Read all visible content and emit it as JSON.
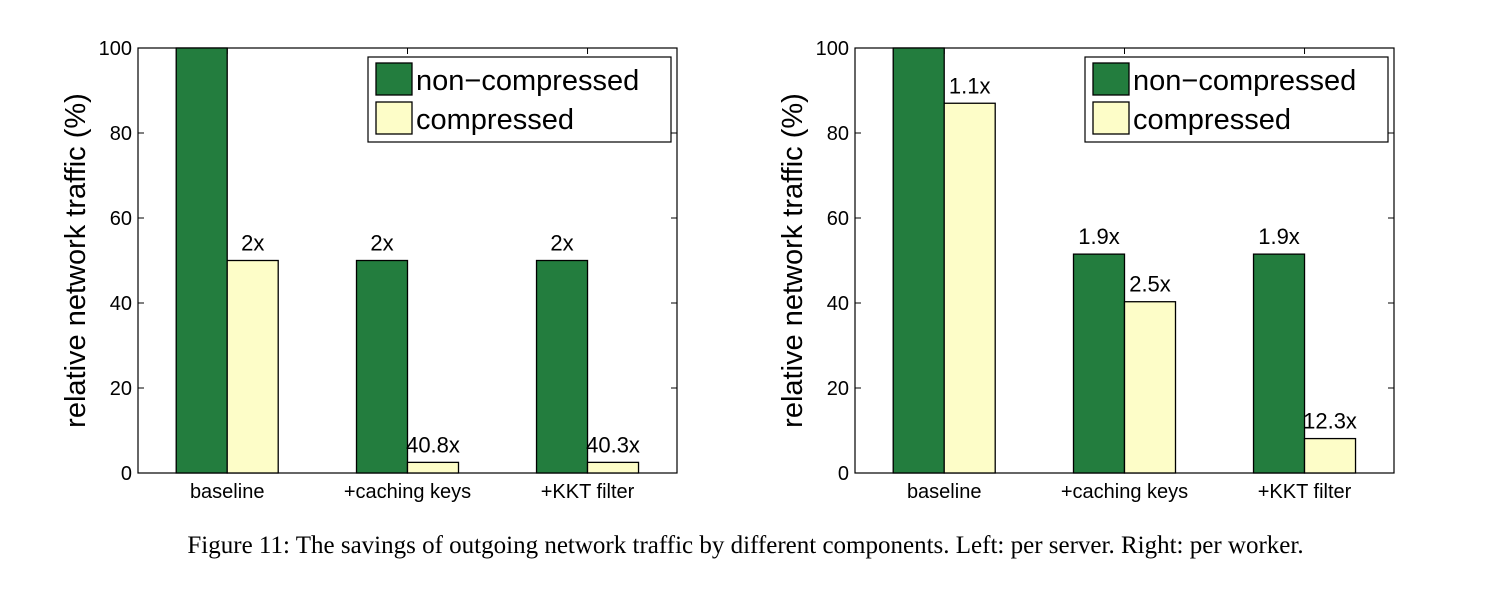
{
  "caption": "Figure 11: The savings of outgoing network traffic by different components. Left: per server. Right: per worker.",
  "colors": {
    "non_compressed": "#237d3e",
    "compressed": "#fdfdc8"
  },
  "chart_data": [
    {
      "type": "bar",
      "panel": "left",
      "categories": [
        "baseline",
        "+caching keys",
        "+KKT filter"
      ],
      "series": [
        {
          "name": "non−compressed",
          "values": [
            100,
            50,
            50
          ],
          "labels": [
            "",
            "2x",
            "2x"
          ]
        },
        {
          "name": "compressed",
          "values": [
            50,
            2.5,
            2.5
          ],
          "labels": [
            "2x",
            "40.8x",
            "40.3x"
          ]
        }
      ],
      "ylabel": "relative network traffic (%)",
      "ylim": [
        0,
        100
      ],
      "yticks": [
        "0",
        "20",
        "40",
        "60",
        "80",
        "100"
      ],
      "grid": false,
      "legend": "top-right"
    },
    {
      "type": "bar",
      "panel": "right",
      "categories": [
        "baseline",
        "+caching keys",
        "+KKT filter"
      ],
      "series": [
        {
          "name": "non−compressed",
          "values": [
            100,
            51.5,
            51.5
          ],
          "labels": [
            "",
            "1.9x",
            "1.9x"
          ]
        },
        {
          "name": "compressed",
          "values": [
            87,
            40.3,
            8.1
          ],
          "labels": [
            "1.1x",
            "2.5x",
            "12.3x"
          ]
        }
      ],
      "ylabel": "relative network traffic (%)",
      "ylim": [
        0,
        100
      ],
      "yticks": [
        "0",
        "20",
        "40",
        "60",
        "80",
        "100"
      ],
      "grid": false,
      "legend": "top-right"
    }
  ]
}
